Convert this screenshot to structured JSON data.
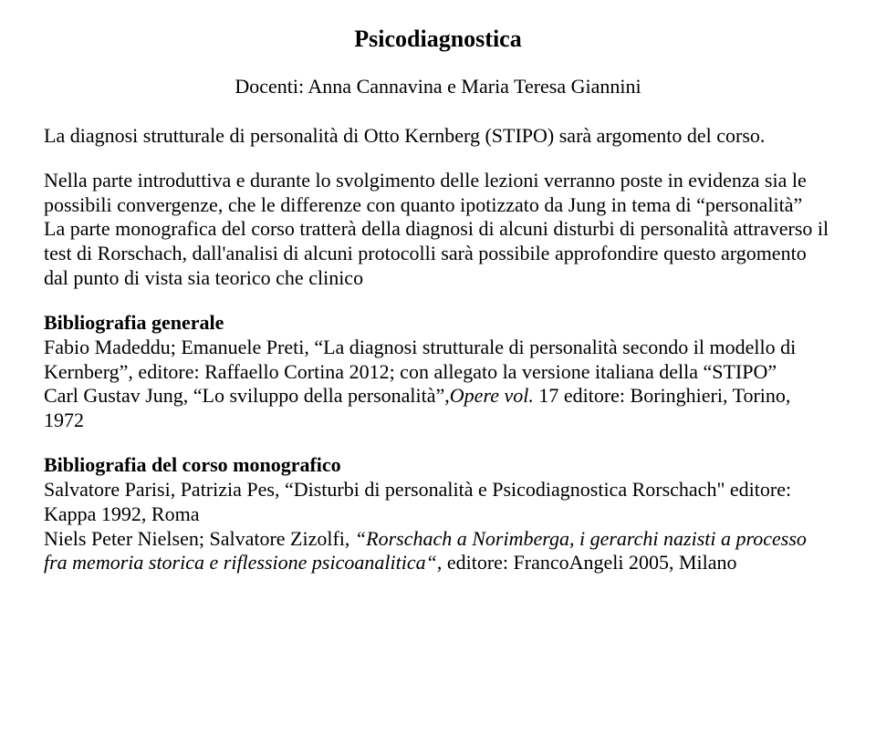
{
  "title": "Psicodiagnostica",
  "docenti": "Docenti: Anna Cannavina e Maria Teresa Giannini",
  "para1": "La diagnosi strutturale di personalità di Otto Kernberg (STIPO) sarà argomento del corso.",
  "para2_line1": "Nella parte introduttiva e durante lo svolgimento delle lezioni verranno poste in evidenza sia le possibili convergenze, che le differenze  con quanto ipotizzato da Jung in tema di “personalità”",
  "para2_line2": "La parte monografica del corso tratterà della diagnosi di alcuni disturbi di personalità attraverso il test di Rorschach, dall'analisi di alcuni protocolli sarà possibile approfondire questo argomento  dal punto di vista sia teorico che clinico",
  "bib_gen_heading": "Bibliografia generale",
  "bib_gen_1": "Fabio Madeddu; Emanuele Preti, “La diagnosi strutturale di personalità secondo il modello di Kernberg”, editore: Raffaello Cortina 2012; con allegato la versione italiana della “STIPO”",
  "bib_gen_2a": "Carl Gustav Jung, “Lo sviluppo della personalità”,",
  "bib_gen_2b": "Opere vol.",
  "bib_gen_2c": " 17 editore: Boringhieri, Torino, 1972",
  "bib_mono_heading": "Bibliografia del corso monografico",
  "bib_mono_1": "Salvatore Parisi, Patrizia Pes, “Disturbi di personalità e Psicodiagnostica Rorschach\" editore: Kappa 1992, Roma",
  "bib_mono_2a": "Niels Peter Nielsen; Salvatore Zizolfi, ",
  "bib_mono_2b": "“Rorschach a Norimberga, i gerarchi nazisti a processo fra memoria storica e riflessione psicoanalitica“",
  "bib_mono_2c": ", editore: FrancoAngeli 2005, Milano"
}
